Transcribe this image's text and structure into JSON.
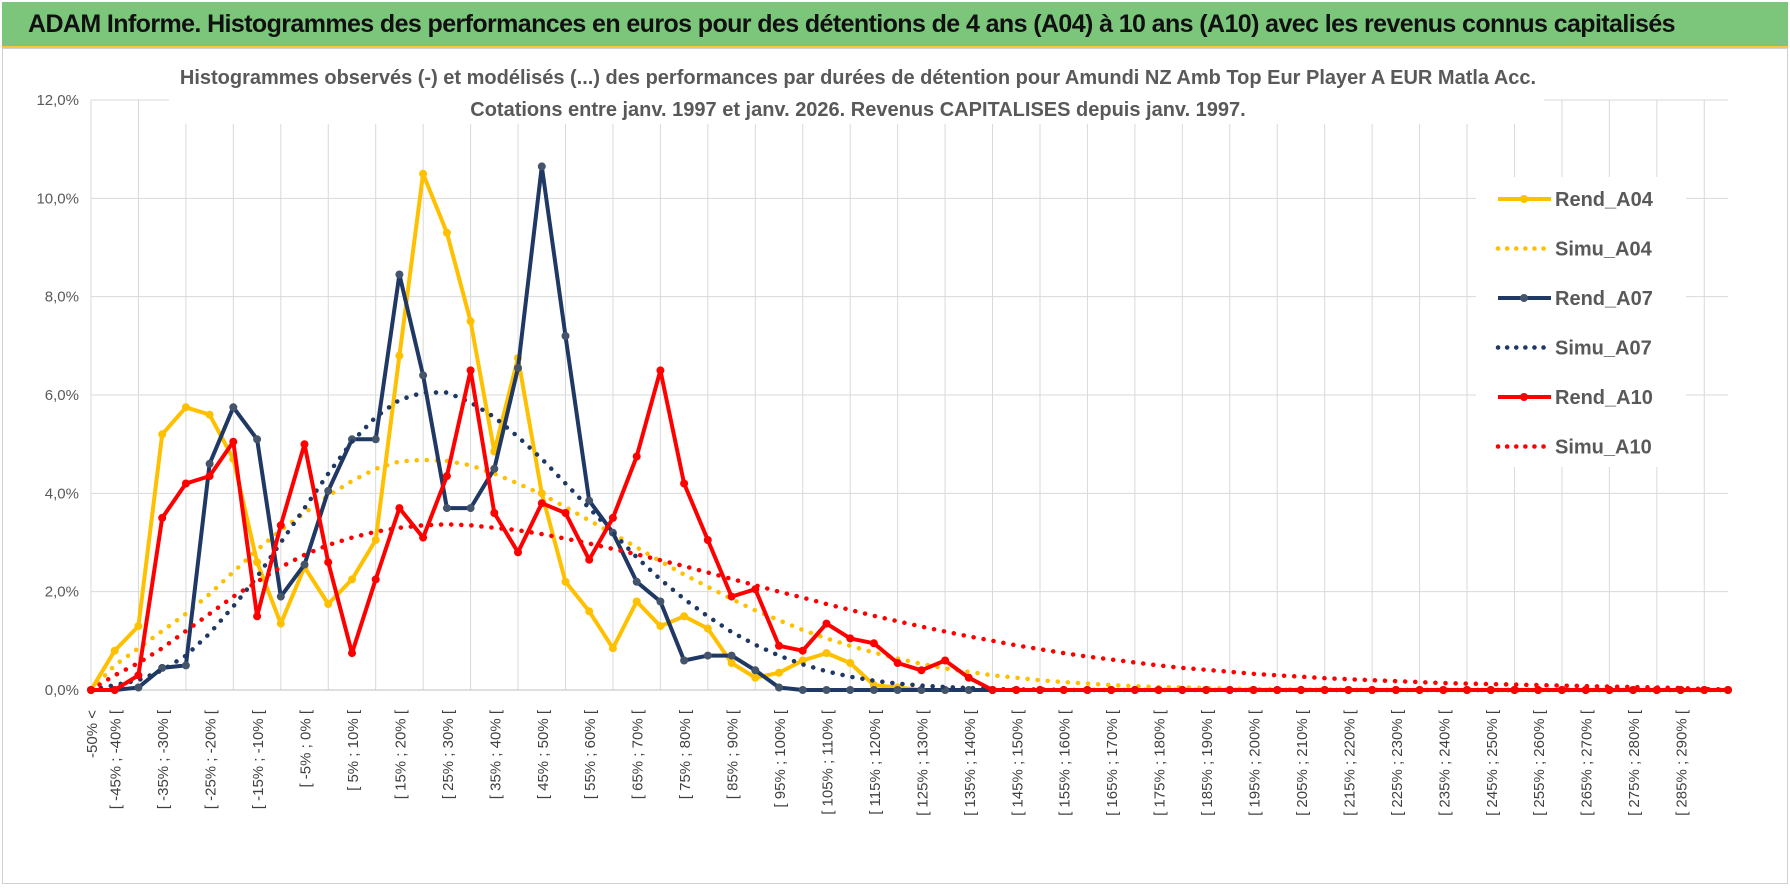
{
  "header": {
    "title": "ADAM Informe. Histogrammes des performances en euros pour des détentions de 4 ans (A04) à 10 ans (A10) avec les revenus connus capitalisés"
  },
  "chart_data": {
    "type": "line",
    "title_line1": "Histogrammes observés (-) et modélisés (...) des performances par durées de détention pour Amundi NZ Amb Top Eur Player A EUR Matla Acc.",
    "title_line2": "Cotations entre janv. 1997 et janv. 2026. Revenus CAPITALISES depuis janv. 1997.",
    "y_ticks": [
      "0,0%",
      "2,0%",
      "4,0%",
      "6,0%",
      "8,0%",
      "10,0%",
      "12,0%"
    ],
    "ylim": [
      0,
      12
    ],
    "grid": true,
    "legend_position": "right",
    "categories": [
      "-50% <",
      "[ -45% ; -40% [",
      "[ -40% ; -35% [",
      "[ -35% ; -30% [",
      "[ -30% ; -25% [",
      "[ -25% ; -20% [",
      "[ -20% ; -15% [",
      "[ -15% ; -10% [",
      "[ -10% ; -5% [",
      "[ -5% ; 0% [",
      "[ 0% ; 5% [",
      "[ 5% ; 10% [",
      "[ 10% ; 15% [",
      "[ 15% ; 20% [",
      "[ 20% ; 25% [",
      "[ 25% ; 30% [",
      "[ 30% ; 35% [",
      "[ 35% ; 40% [",
      "[ 40% ; 45% [",
      "[ 45% ; 50% [",
      "[ 50% ; 55% [",
      "[ 55% ; 60% [",
      "[ 60% ; 65% [",
      "[ 65% ; 70% [",
      "[ 70% ; 75% [",
      "[ 75% ; 80% [",
      "[ 80% ; 85% [",
      "[ 85% ; 90% [",
      "[ 90% ; 95% [",
      "[ 95% ; 100% [",
      "[ 100% ; 105% [",
      "[ 105% ; 110% [",
      "[ 110% ; 115% [",
      "[ 115% ; 120% [",
      "[ 120% ; 125% [",
      "[ 125% ; 130% [",
      "[ 130% ; 135% [",
      "[ 135% ; 140% [",
      "[ 140% ; 145% [",
      "[ 145% ; 150% [",
      "[ 150% ; 155% [",
      "[ 155% ; 160% [",
      "[ 160% ; 165% [",
      "[ 165% ; 170% [",
      "[ 170% ; 175% [",
      "[ 175% ; 180% [",
      "[ 180% ; 185% [",
      "[ 185% ; 190% [",
      "[ 190% ; 195% [",
      "[ 195% ; 200% [",
      "[ 200% ; 205% [",
      "[ 205% ; 210% [",
      "[ 210% ; 215% [",
      "[ 215% ; 220% [",
      "[ 220% ; 225% [",
      "[ 225% ; 230% [",
      "[ 230% ; 235% [",
      "[ 235% ; 240% [",
      "[ 240% ; 245% [",
      "[ 245% ; 250% [",
      "[ 250% ; 255% [",
      "[ 255% ; 260% [",
      "[ 260% ; 265% [",
      "[ 265% ; 270% [",
      "[ 270% ; 275% [",
      "[ 275% ; 280% [",
      "[ 280% ; 285% [",
      "[ 285% ; 290% [",
      "[ 290% ; 295% [",
      "[ 295% ; 300% ["
    ],
    "shown_tick_labels": [
      "-50% <",
      "[ -45% ; -40% [",
      "[ -35% ; -30% [",
      "[ -25% ; -20% [",
      "[ -15% ; -10% [",
      "[ -5% ; 0% [",
      "[ 5% ; 10% [",
      "[ 15% ; 20% [",
      "[ 25% ; 30% [",
      "[ 35% ; 40% [",
      "[ 45% ; 50% [",
      "[ 55% ; 60% [",
      "[ 65% ; 70% [",
      "[ 75% ; 80% [",
      "[ 85% ; 90% [",
      "[ 95% ; 100% [",
      "[ 105% ; 110% [",
      "[ 115% ; 120% [",
      "[ 125% ; 130% [",
      "[ 135% ; 140% [",
      "[ 145% ; 150% [",
      "[ 155% ; 160% [",
      "[ 165% ; 170% [",
      "[ 175% ; 180% [",
      "[ 185% ; 190% [",
      "[ 195% ; 200% [",
      "[ 205% ; 210% [",
      "[ 215% ; 220% [",
      "[ 225% ; 230% [",
      "[ 235% ; 240% [",
      "[ 245% ; 250% [",
      "[ 255% ; 260% [",
      "[ 265% ; 270% [",
      "[ 275% ; 280% [",
      "[ 285% ; 290% ["
    ],
    "series": [
      {
        "name": "Rend_A04",
        "color": "#ffc000",
        "style": "solid",
        "values": [
          0.0,
          0.8,
          1.3,
          5.2,
          5.75,
          5.6,
          4.7,
          2.6,
          1.35,
          2.5,
          1.75,
          2.25,
          3.05,
          6.8,
          10.5,
          9.3,
          7.5,
          4.85,
          6.75,
          4.0,
          2.2,
          1.6,
          0.85,
          1.8,
          1.3,
          1.5,
          1.25,
          0.55,
          0.25,
          0.35,
          0.6,
          0.75,
          0.55,
          0.1,
          0.05,
          0.0,
          0.0,
          0.0,
          0.0,
          0.0,
          0.0,
          0.0,
          0.0,
          0.0,
          0.0,
          0.0,
          0.0,
          0.0,
          0.0,
          0.0,
          0.0,
          0.0,
          0.0,
          0.0,
          0.0,
          0.0,
          0.0,
          0.0,
          0.0,
          0.0,
          0.0,
          0.0,
          0.0,
          0.0,
          0.0,
          0.0,
          0.0,
          0.0,
          0.0,
          0.0
        ]
      },
      {
        "name": "Simu_A04",
        "color": "#ffc000",
        "style": "dotted",
        "values": [
          0.0,
          0.5,
          0.85,
          1.2,
          1.55,
          1.95,
          2.4,
          2.85,
          3.25,
          3.6,
          3.95,
          4.25,
          4.5,
          4.65,
          4.68,
          4.66,
          4.57,
          4.4,
          4.2,
          3.98,
          3.72,
          3.45,
          3.18,
          2.9,
          2.62,
          2.35,
          2.1,
          1.85,
          1.62,
          1.42,
          1.22,
          1.05,
          0.9,
          0.76,
          0.64,
          0.53,
          0.44,
          0.37,
          0.3,
          0.25,
          0.2,
          0.16,
          0.13,
          0.1,
          0.08,
          0.06,
          0.05,
          0.04,
          0.03,
          0.02,
          0.02,
          0.01,
          0.01,
          0.01,
          0.0,
          0.0,
          0.0,
          0.0,
          0.0,
          0.0,
          0.0,
          0.0,
          0.0,
          0.0,
          0.0,
          0.0,
          0.0,
          0.0,
          0.0,
          0.0
        ]
      },
      {
        "name": "Rend_A07",
        "color": "#1f3864",
        "style": "solid",
        "values": [
          0.0,
          0.0,
          0.05,
          0.45,
          0.5,
          4.6,
          5.75,
          5.1,
          1.9,
          2.55,
          4.05,
          5.1,
          5.1,
          8.45,
          6.4,
          3.7,
          3.7,
          4.5,
          6.55,
          10.65,
          7.2,
          3.85,
          3.2,
          2.2,
          1.8,
          0.6,
          0.7,
          0.7,
          0.4,
          0.05,
          0.0,
          0.0,
          0.0,
          0.0,
          0.0,
          0.0,
          0.0,
          0.0,
          0.0,
          0.0,
          0.0,
          0.0,
          0.0,
          0.0,
          0.0,
          0.0,
          0.0,
          0.0,
          0.0,
          0.0,
          0.0,
          0.0,
          0.0,
          0.0,
          0.0,
          0.0,
          0.0,
          0.0,
          0.0,
          0.0,
          0.0,
          0.0,
          0.0,
          0.0,
          0.0,
          0.0,
          0.0,
          0.0,
          0.0,
          0.0
        ]
      },
      {
        "name": "Simu_A07",
        "color": "#1f3864",
        "style": "dotted",
        "values": [
          0.0,
          0.1,
          0.2,
          0.4,
          0.7,
          1.15,
          1.7,
          2.3,
          3.0,
          3.7,
          4.4,
          5.05,
          5.55,
          5.9,
          6.05,
          6.05,
          5.85,
          5.55,
          5.15,
          4.7,
          4.2,
          3.7,
          3.2,
          2.7,
          2.25,
          1.85,
          1.5,
          1.18,
          0.92,
          0.7,
          0.52,
          0.38,
          0.27,
          0.19,
          0.13,
          0.09,
          0.06,
          0.04,
          0.02,
          0.01,
          0.01,
          0.0,
          0.0,
          0.0,
          0.0,
          0.0,
          0.0,
          0.0,
          0.0,
          0.0,
          0.0,
          0.0,
          0.0,
          0.0,
          0.0,
          0.0,
          0.0,
          0.0,
          0.0,
          0.0,
          0.0,
          0.0,
          0.0,
          0.0,
          0.0,
          0.0,
          0.0,
          0.0,
          0.0,
          0.0
        ]
      },
      {
        "name": "Rend_A10",
        "color": "#ff0000",
        "style": "solid",
        "values": [
          0.0,
          0.0,
          0.3,
          3.5,
          4.2,
          4.35,
          5.05,
          1.5,
          3.35,
          5.0,
          2.6,
          0.75,
          2.25,
          3.7,
          3.1,
          4.35,
          6.5,
          3.6,
          2.8,
          3.8,
          3.6,
          2.65,
          3.5,
          4.75,
          6.5,
          4.2,
          3.05,
          1.9,
          2.05,
          0.9,
          0.8,
          1.35,
          1.05,
          0.95,
          0.55,
          0.4,
          0.6,
          0.25,
          0.0,
          0.0,
          0.0,
          0.0,
          0.0,
          0.0,
          0.0,
          0.0,
          0.0,
          0.0,
          0.0,
          0.0,
          0.0,
          0.0,
          0.0,
          0.0,
          0.0,
          0.0,
          0.0,
          0.0,
          0.0,
          0.0,
          0.0,
          0.0,
          0.0,
          0.0,
          0.0,
          0.0,
          0.0,
          0.0,
          0.0,
          0.0
        ]
      },
      {
        "name": "Simu_A10",
        "color": "#ff0000",
        "style": "dotted",
        "values": [
          0.0,
          0.3,
          0.55,
          0.85,
          1.2,
          1.55,
          1.9,
          2.2,
          2.5,
          2.75,
          2.95,
          3.1,
          3.22,
          3.3,
          3.35,
          3.37,
          3.35,
          3.3,
          3.25,
          3.17,
          3.08,
          2.98,
          2.87,
          2.76,
          2.64,
          2.52,
          2.39,
          2.26,
          2.13,
          2.0,
          1.88,
          1.75,
          1.63,
          1.51,
          1.4,
          1.29,
          1.19,
          1.09,
          1.0,
          0.91,
          0.83,
          0.75,
          0.68,
          0.62,
          0.56,
          0.5,
          0.45,
          0.41,
          0.37,
          0.33,
          0.3,
          0.27,
          0.24,
          0.22,
          0.2,
          0.18,
          0.16,
          0.14,
          0.13,
          0.12,
          0.11,
          0.1,
          0.09,
          0.08,
          0.07,
          0.06,
          0.05,
          0.04,
          0.02,
          0.01
        ]
      }
    ]
  }
}
